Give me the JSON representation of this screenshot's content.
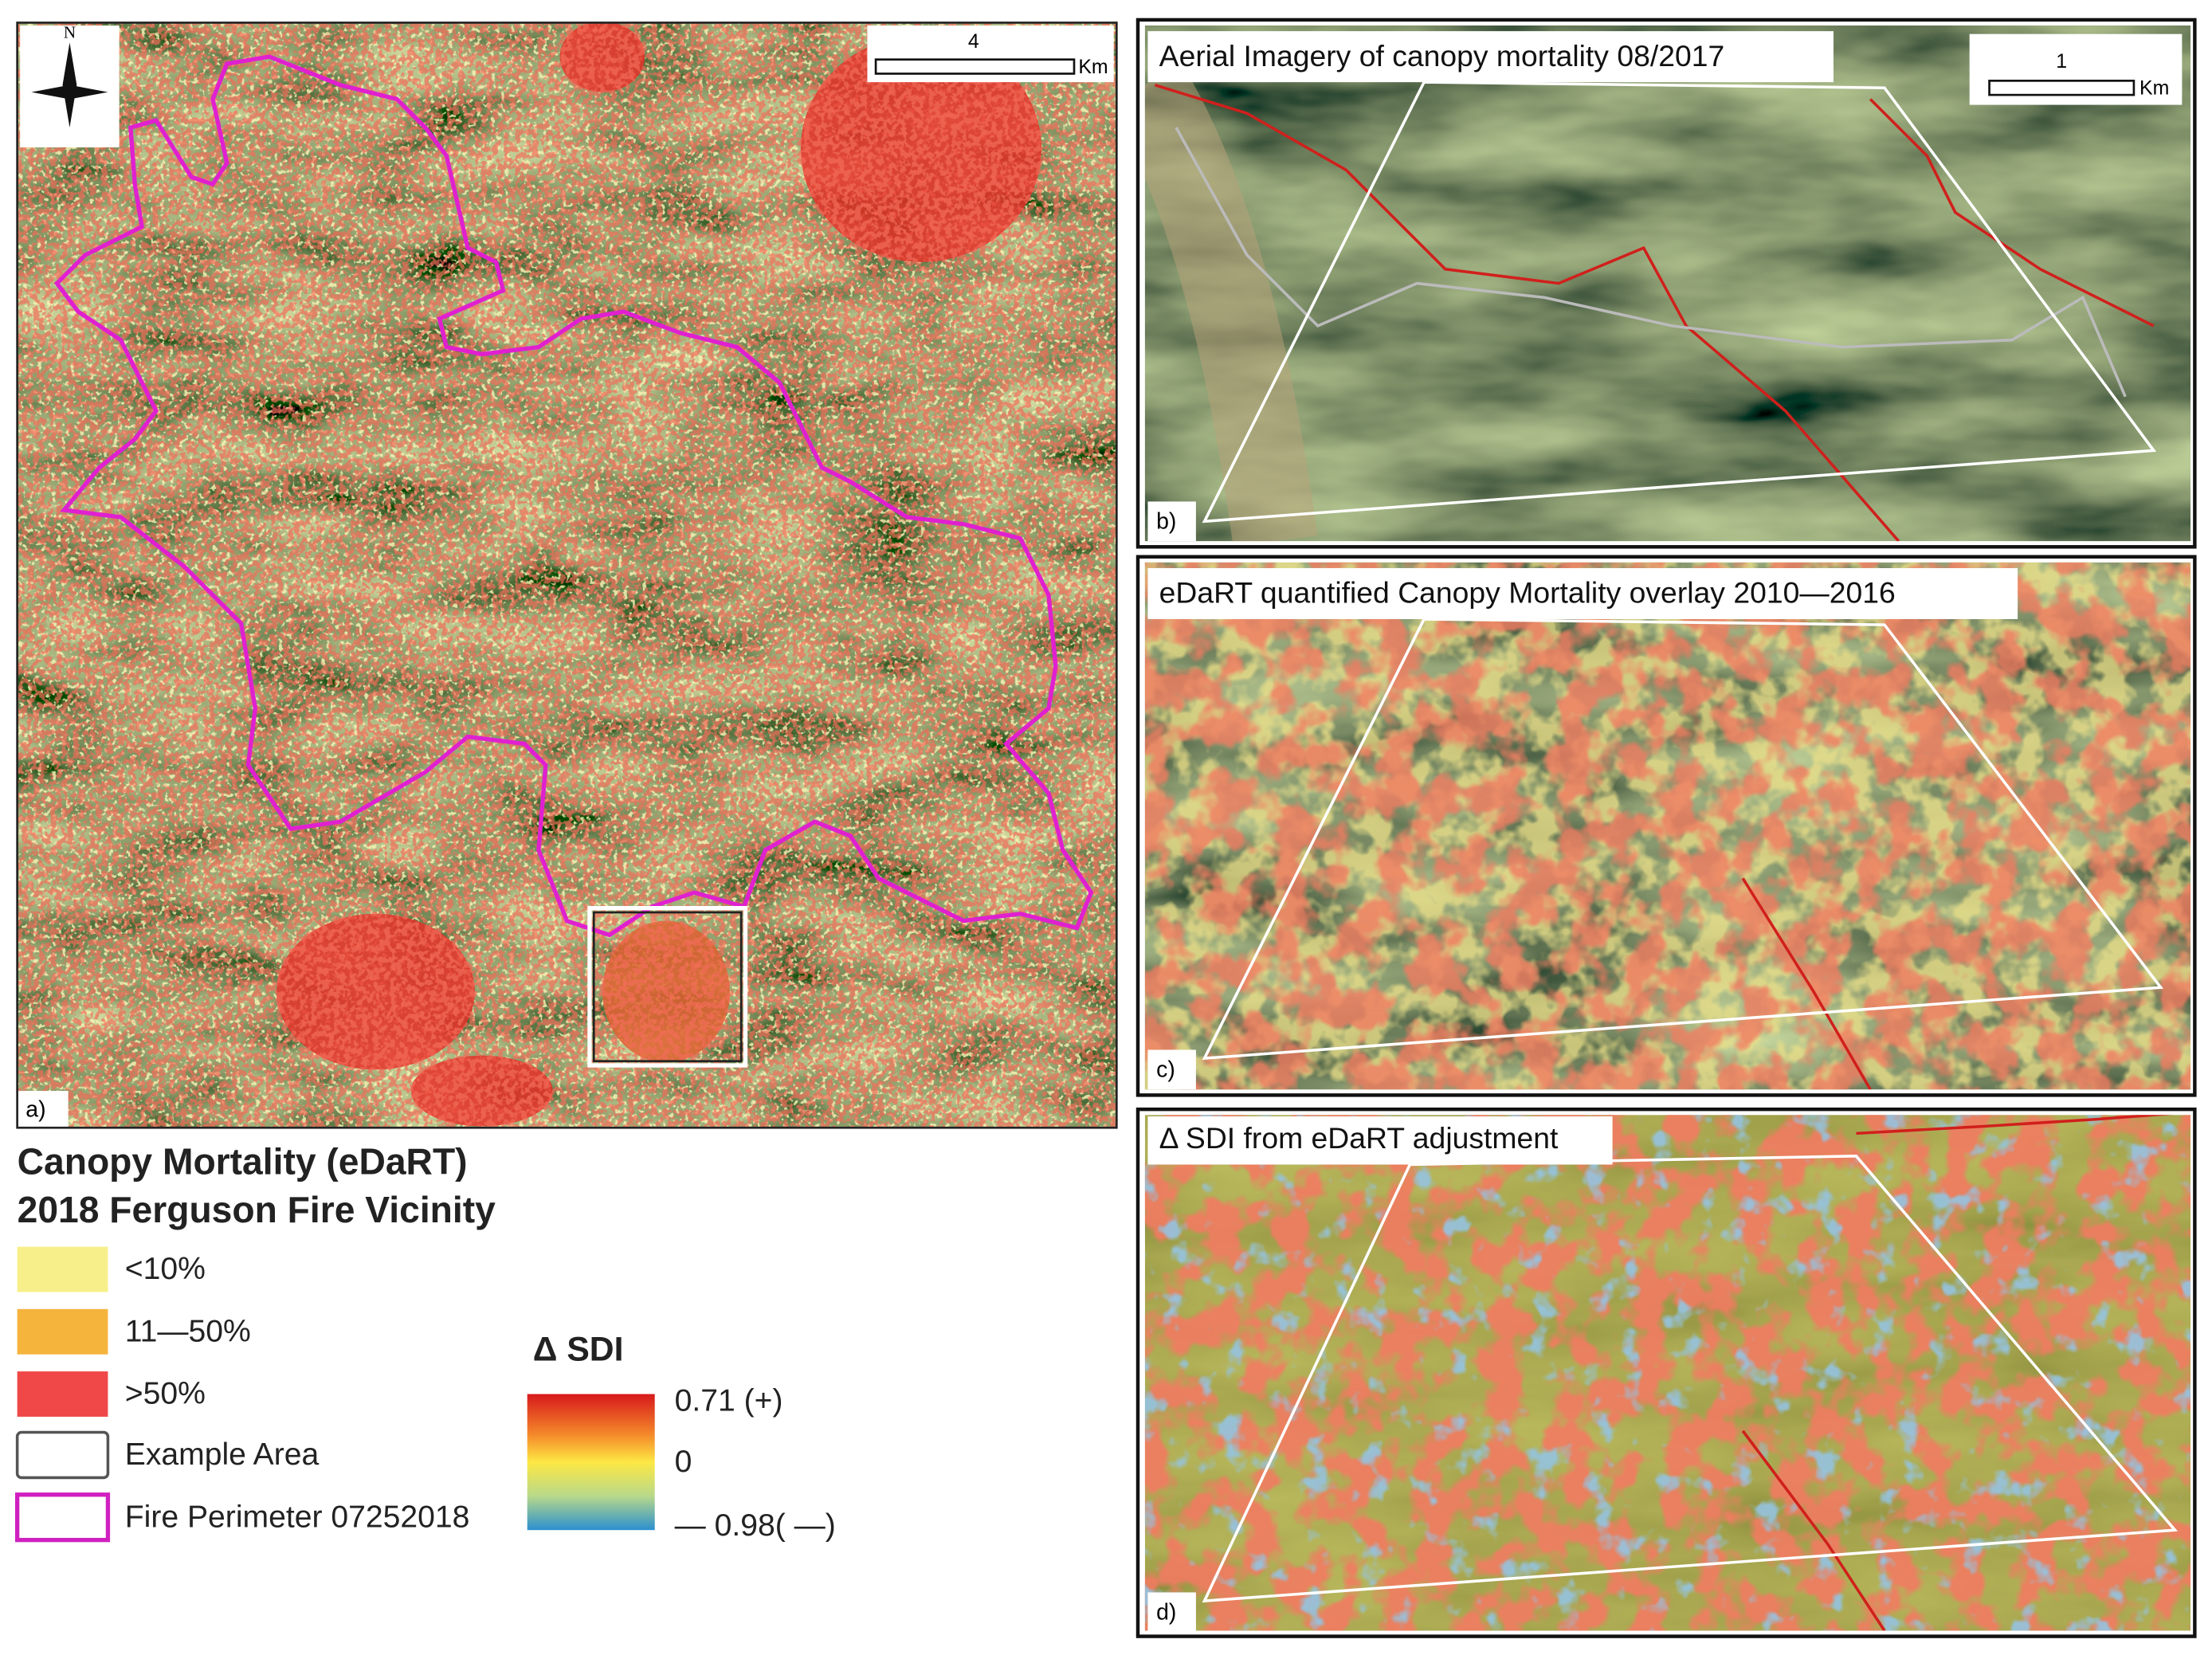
{
  "panel_a": {
    "label": "a)",
    "north": "N",
    "scale_value": "4",
    "scale_unit": "Km"
  },
  "legend": {
    "title": [
      "Canopy Mortality (eDaRT)",
      "2018 Ferguson Fire Vicinity"
    ],
    "items": [
      "<10%",
      "11—50%",
      ">50%",
      "Example Area",
      "Fire Perimeter 07252018"
    ]
  },
  "sdi_legend": {
    "title": "Δ SDI",
    "labels": [
      "0.71 (+)",
      "0",
      "— 0.98( —)"
    ]
  },
  "panel_b": {
    "title": "Aerial Imagery of canopy mortality 08/2017",
    "label": "b)",
    "scale_value": "1",
    "scale_unit": "Km"
  },
  "panel_c": {
    "title": "eDaRT quantified Canopy Mortality overlay 2010—2016",
    "label": "c)"
  },
  "panel_d": {
    "title": "Δ SDI from eDaRT adjustment",
    "label": "d)"
  }
}
